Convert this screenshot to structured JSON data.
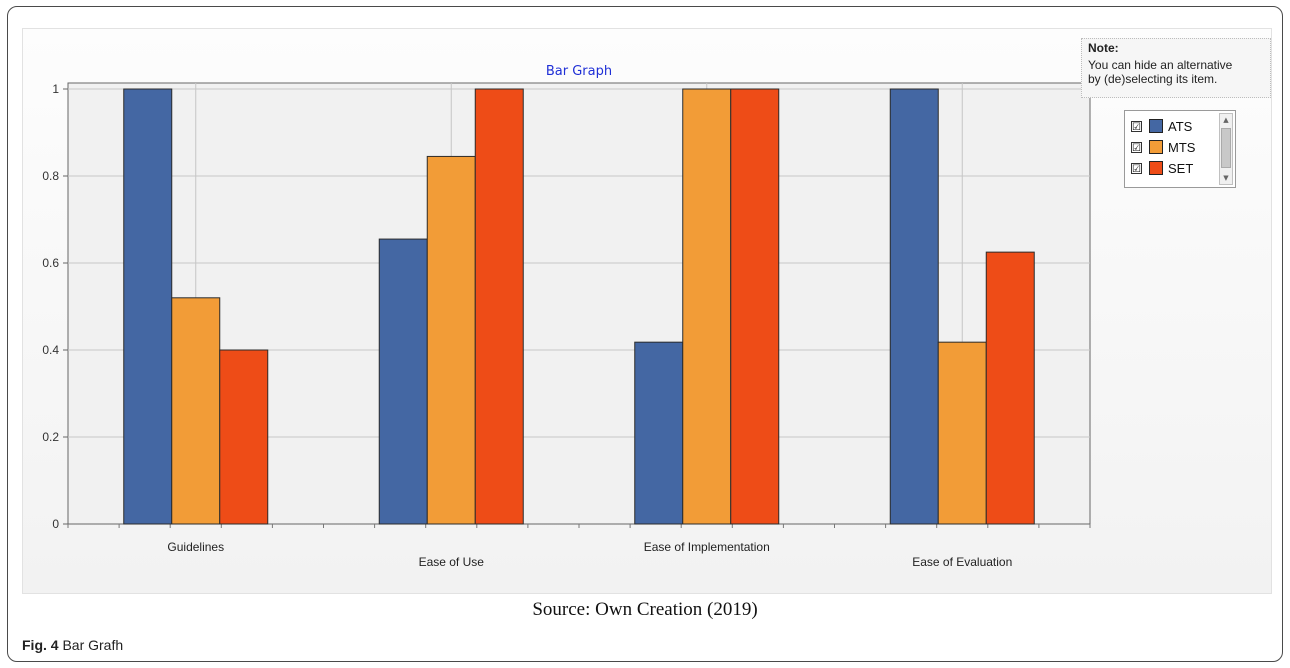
{
  "note": {
    "title": "Note:",
    "line1": "You can hide an alternative",
    "line2": "by (de)selecting its item."
  },
  "legend": [
    {
      "label": "ATS",
      "checked": "☑",
      "color": "#4467a3"
    },
    {
      "label": "MTS",
      "checked": "☑",
      "color": "#f29c37"
    },
    {
      "label": "SET",
      "checked": "☑",
      "color": "#ee4c17"
    }
  ],
  "chart_data": {
    "type": "bar",
    "title": "Bar Graph",
    "xlabel": "",
    "ylabel": "",
    "ylim": [
      0,
      1
    ],
    "yticks": [
      "0",
      "0.2",
      "0.4",
      "0.6",
      "0.8",
      "1"
    ],
    "grid": true,
    "legend_position": "right",
    "categories": [
      "Guidelines",
      "Ease of Use",
      "Ease of Implementation",
      "Ease of Evaluation"
    ],
    "series": [
      {
        "name": "ATS",
        "color": "#4467a3",
        "values": [
          1.0,
          0.655,
          0.418,
          1.0
        ]
      },
      {
        "name": "MTS",
        "color": "#f29c37",
        "values": [
          0.52,
          0.845,
          1.0,
          0.418
        ]
      },
      {
        "name": "SET",
        "color": "#ee4c17",
        "values": [
          0.4,
          1.0,
          1.0,
          0.625
        ]
      }
    ]
  },
  "source": "Source: Own Creation (2019)",
  "caption": {
    "label": "Fig. 4",
    "text": "Bar Grafh"
  }
}
